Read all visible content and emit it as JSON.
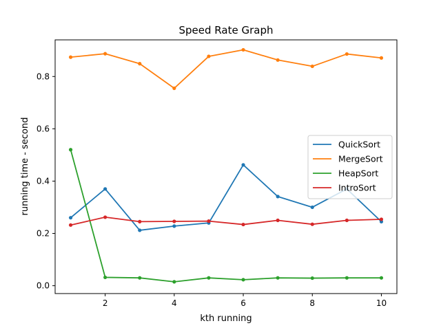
{
  "chart_data": {
    "type": "line",
    "title": "Speed Rate Graph",
    "xlabel": "kth running",
    "ylabel": "running time - second",
    "x": [
      1,
      2,
      3,
      4,
      5,
      6,
      7,
      8,
      9,
      10
    ],
    "xlim": [
      0.55,
      10.45
    ],
    "ylim": [
      -0.03,
      0.94
    ],
    "xticks": [
      2,
      4,
      6,
      8,
      10
    ],
    "xtick_labels": [
      "2",
      "4",
      "6",
      "8",
      "10"
    ],
    "yticks": [
      0.0,
      0.2,
      0.4,
      0.6,
      0.8
    ],
    "ytick_labels": [
      "0.0",
      "0.2",
      "0.4",
      "0.6",
      "0.8"
    ],
    "grid": false,
    "legend_position": "center-right",
    "series": [
      {
        "name": "QuickSort",
        "color": "#1f77b4",
        "values": [
          0.26,
          0.37,
          0.212,
          0.228,
          0.24,
          0.462,
          0.341,
          0.3,
          0.37,
          0.245
        ]
      },
      {
        "name": "MergeSort",
        "color": "#ff7f0e",
        "values": [
          0.874,
          0.887,
          0.849,
          0.755,
          0.877,
          0.902,
          0.863,
          0.839,
          0.886,
          0.871
        ]
      },
      {
        "name": "HeapSort",
        "color": "#2ca02c",
        "values": [
          0.52,
          0.032,
          0.03,
          0.015,
          0.03,
          0.023,
          0.03,
          0.029,
          0.03,
          0.03
        ]
      },
      {
        "name": "IntroSort",
        "color": "#d62728",
        "values": [
          0.232,
          0.262,
          0.245,
          0.246,
          0.247,
          0.234,
          0.25,
          0.235,
          0.25,
          0.254
        ]
      }
    ]
  }
}
